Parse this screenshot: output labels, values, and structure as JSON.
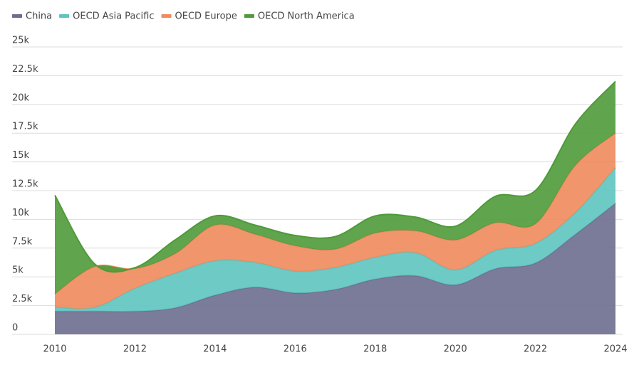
{
  "chart_data": {
    "type": "area",
    "stacked": true,
    "x": [
      2010,
      2011,
      2012,
      2013,
      2014,
      2015,
      2016,
      2017,
      2018,
      2019,
      2020,
      2021,
      2022,
      2023,
      2024
    ],
    "xlim": [
      2010,
      2024
    ],
    "xticks": [
      2010,
      2012,
      2014,
      2016,
      2018,
      2020,
      2022,
      2024
    ],
    "ylim": [
      0,
      25000
    ],
    "yticks": [
      0,
      {
        "value": 2500,
        "label": "2.5k"
      },
      {
        "value": 5000,
        "label": "5k"
      },
      {
        "value": 7500,
        "label": "7.5k"
      },
      {
        "value": 10000,
        "label": "10k"
      },
      {
        "value": 12500,
        "label": "12.5k"
      },
      {
        "value": 15000,
        "label": "15k"
      },
      {
        "value": 17500,
        "label": "17.5k"
      },
      {
        "value": 20000,
        "label": "20k"
      },
      {
        "value": 22500,
        "label": "22.5k"
      },
      {
        "value": 25000,
        "label": "25k"
      }
    ],
    "grid": true,
    "legend": "top-left",
    "series": [
      {
        "name": "China",
        "color": "#6b6e8f",
        "values": [
          2000,
          2000,
          2000,
          2300,
          3400,
          4100,
          3600,
          3900,
          4800,
          5100,
          4300,
          5700,
          6200,
          8700,
          11400
        ]
      },
      {
        "name": "OECD Asia Pacific",
        "color": "#5ec4bf",
        "values": [
          350,
          350,
          2000,
          3000,
          3000,
          2150,
          1900,
          1900,
          1900,
          2000,
          1300,
          1600,
          1700,
          1900,
          3100
        ]
      },
      {
        "name": "OECD Europe",
        "color": "#f08a5d",
        "values": [
          1150,
          3550,
          1700,
          1700,
          3100,
          2450,
          2200,
          1600,
          2100,
          1900,
          2600,
          2400,
          1700,
          4100,
          3000
        ]
      },
      {
        "name": "OECD North America",
        "color": "#4f9a3a",
        "values": [
          8600,
          200,
          100,
          1200,
          800,
          800,
          900,
          1100,
          1500,
          1200,
          1200,
          2300,
          2900,
          3600,
          4500
        ]
      }
    ]
  }
}
